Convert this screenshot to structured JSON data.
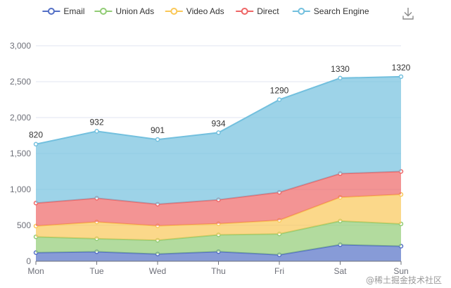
{
  "chart_data": {
    "type": "area",
    "stacked": true,
    "categories": [
      "Mon",
      "Tue",
      "Wed",
      "Thu",
      "Fri",
      "Sat",
      "Sun"
    ],
    "series": [
      {
        "name": "Email",
        "color": "#5470c6",
        "values": [
          120,
          132,
          101,
          134,
          90,
          230,
          210
        ]
      },
      {
        "name": "Union Ads",
        "color": "#91cc75",
        "values": [
          220,
          182,
          191,
          234,
          290,
          330,
          310
        ]
      },
      {
        "name": "Video Ads",
        "color": "#fac858",
        "values": [
          150,
          232,
          201,
          154,
          190,
          330,
          410
        ]
      },
      {
        "name": "Direct",
        "color": "#ee6666",
        "values": [
          320,
          332,
          301,
          334,
          390,
          330,
          320
        ]
      },
      {
        "name": "Search Engine",
        "color": "#73c0de",
        "values": [
          820,
          932,
          901,
          934,
          1290,
          1330,
          1320
        ]
      }
    ],
    "labeled_series": "Search Engine",
    "ylim": [
      0,
      3000
    ],
    "yticks": [
      0,
      500,
      1000,
      1500,
      2000,
      2500,
      3000
    ],
    "ytick_labels": [
      "0",
      "500",
      "1,000",
      "1,500",
      "2,000",
      "2,500",
      "3,000"
    ],
    "grid": true,
    "legend_position": "top"
  },
  "toolbox": {
    "download_icon": "download-icon"
  },
  "watermark": "@稀土掘金技术社区"
}
